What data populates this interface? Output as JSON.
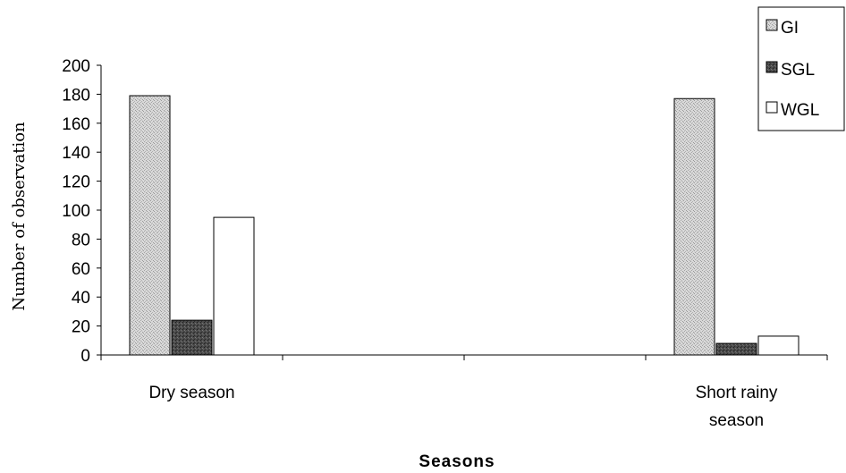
{
  "chart_data": {
    "type": "bar",
    "title": "",
    "xlabel": "Seasons",
    "ylabel": "Number of observation",
    "categories": [
      [
        "Dry season"
      ],
      [
        "Short rainy",
        "season"
      ]
    ],
    "category_positions": [
      0,
      3
    ],
    "series": [
      {
        "name": "GI",
        "values": [
          179,
          177
        ]
      },
      {
        "name": "SGL",
        "values": [
          24,
          8
        ]
      },
      {
        "name": "WGL",
        "values": [
          95,
          13
        ]
      }
    ],
    "ylim": [
      0,
      200
    ],
    "yticks": [
      0,
      20,
      40,
      60,
      80,
      100,
      120,
      140,
      160,
      180,
      200
    ],
    "grid": false,
    "legend_position": "top-right"
  }
}
